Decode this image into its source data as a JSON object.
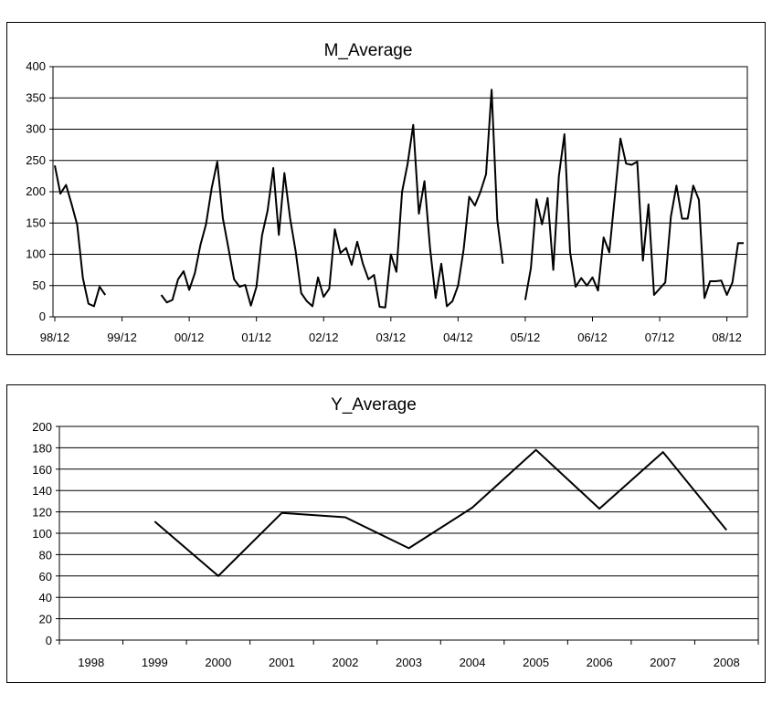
{
  "chart_data": [
    {
      "type": "line",
      "title": "M_Average",
      "xlabel": "",
      "ylabel": "",
      "ylim": [
        0,
        400
      ],
      "yticks": [
        "0",
        "50",
        "100",
        "150",
        "200",
        "250",
        "300",
        "350",
        "400"
      ],
      "xticks": [
        "98/12",
        "99/12",
        "00/12",
        "01/12",
        "02/12",
        "03/12",
        "04/12",
        "05/12",
        "06/12",
        "07/12",
        "08/12"
      ],
      "grid": true,
      "legend": "none",
      "series": [
        {
          "values": [
            242,
            197,
            211,
            180,
            147,
            62,
            21,
            17,
            48,
            35,
            null,
            null,
            null,
            null,
            null,
            null,
            null,
            null,
            null,
            35,
            23,
            27,
            60,
            73,
            43,
            70,
            115,
            148,
            205,
            248,
            158,
            110,
            60,
            48,
            51,
            18,
            48,
            130,
            170,
            238,
            131,
            230,
            158,
            105,
            38,
            25,
            17,
            63,
            32,
            45,
            140,
            102,
            110,
            83,
            120,
            85,
            60,
            67,
            16,
            15,
            100,
            72,
            200,
            245,
            307,
            165,
            217,
            110,
            30,
            85,
            17,
            25,
            50,
            108,
            192,
            178,
            200,
            228,
            363,
            155,
            85,
            null,
            null,
            null,
            27,
            78,
            188,
            148,
            190,
            75,
            225,
            292,
            103,
            48,
            62,
            50,
            63,
            42,
            127,
            103,
            193,
            285,
            245,
            243,
            248,
            90,
            180,
            35,
            45,
            55,
            160,
            210,
            157,
            157,
            210,
            187,
            30,
            57,
            57,
            58,
            35,
            55,
            118,
            118
          ]
        }
      ]
    },
    {
      "type": "line",
      "title": "Y_Average",
      "xlabel": "",
      "ylabel": "",
      "ylim": [
        0,
        200
      ],
      "yticks": [
        "0",
        "20",
        "40",
        "60",
        "80",
        "100",
        "120",
        "140",
        "160",
        "180",
        "200"
      ],
      "categories": [
        "1998",
        "1999",
        "2000",
        "2001",
        "2002",
        "2003",
        "2004",
        "2005",
        "2006",
        "2007",
        "2008"
      ],
      "grid": true,
      "legend": "none",
      "series": [
        {
          "values": [
            null,
            111,
            60,
            119,
            115,
            86,
            124,
            178,
            123,
            176,
            103
          ]
        }
      ]
    }
  ]
}
